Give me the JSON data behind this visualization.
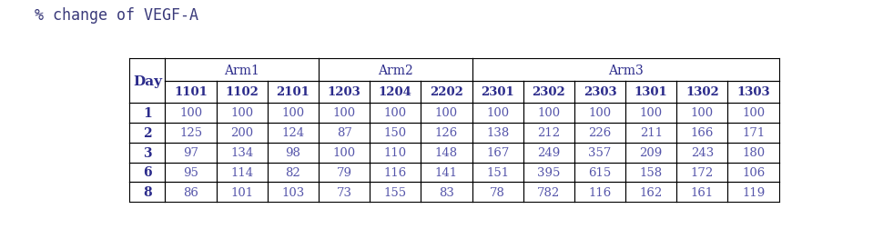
{
  "title": "% change of VEGF-A",
  "title_color": "#3a3a7a",
  "title_fontsize": 12,
  "arm_headers": [
    "Arm1",
    "Arm2",
    "Arm3"
  ],
  "arm_col_starts": [
    1,
    4,
    7
  ],
  "arm_col_ends": [
    3,
    6,
    12
  ],
  "col_headers": [
    "Day",
    "1101",
    "1102",
    "2101",
    "1203",
    "1204",
    "2202",
    "2301",
    "2302",
    "2303",
    "1301",
    "1302",
    "1303"
  ],
  "header_color": "#2b2b8b",
  "data_color": "#5555aa",
  "days": [
    "1",
    "2",
    "3",
    "6",
    "8"
  ],
  "table_data": [
    [
      100,
      100,
      100,
      100,
      100,
      100,
      100,
      100,
      100,
      100,
      100,
      100
    ],
    [
      125,
      200,
      124,
      87,
      150,
      126,
      138,
      212,
      226,
      211,
      166,
      171
    ],
    [
      97,
      134,
      98,
      100,
      110,
      148,
      167,
      249,
      357,
      209,
      243,
      180
    ],
    [
      95,
      114,
      82,
      79,
      116,
      141,
      151,
      395,
      615,
      158,
      172,
      106
    ],
    [
      86,
      101,
      103,
      73,
      155,
      83,
      78,
      782,
      116,
      162,
      161,
      119
    ]
  ],
  "background_color": "#ffffff",
  "border_color": "#000000"
}
